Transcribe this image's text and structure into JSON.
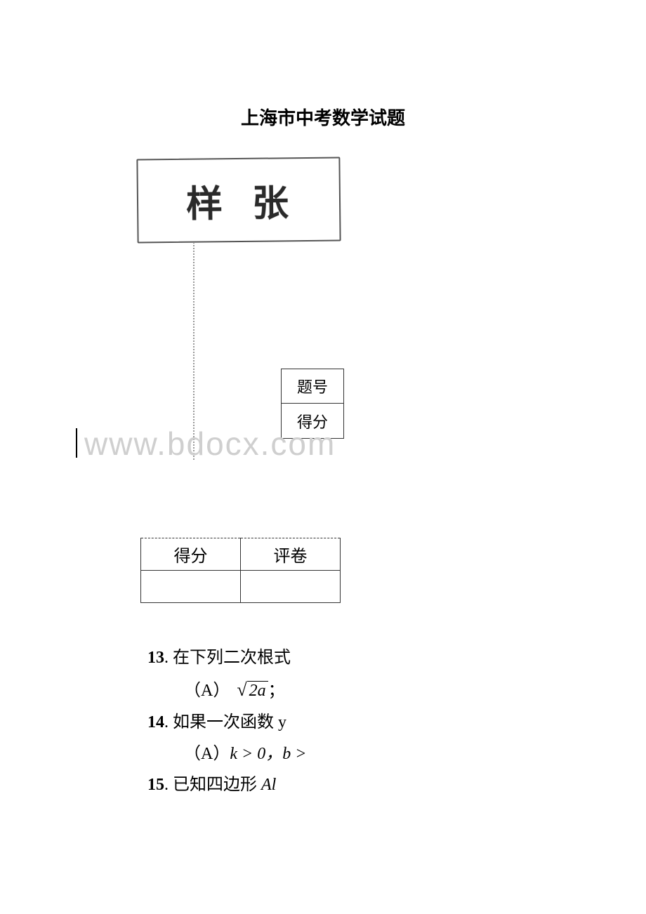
{
  "title": "上海市中考数学试题",
  "stamp": {
    "text": "样张"
  },
  "header_table": {
    "row1": "题号",
    "row2": "得分"
  },
  "watermark": "www.bdocx.com",
  "score_table": {
    "h1": "得分",
    "h2": "评卷"
  },
  "questions": {
    "q13": {
      "num": "13",
      "text": ". 在下列二次根式",
      "opt_label": "（A）",
      "opt_sqrt_arg": "2a",
      "tail": "；"
    },
    "q14": {
      "num": "14",
      "text": ". 如果一次函数 y",
      "opt_label": "（A）",
      "opt_math": "k > 0，b >"
    },
    "q15": {
      "num": "15",
      "text": ".  已知四边形 ",
      "tail_it": "Al"
    }
  },
  "colors": {
    "text": "#000000",
    "watermark": "#cfcfcf",
    "border": "#333333",
    "background": "#ffffff"
  }
}
